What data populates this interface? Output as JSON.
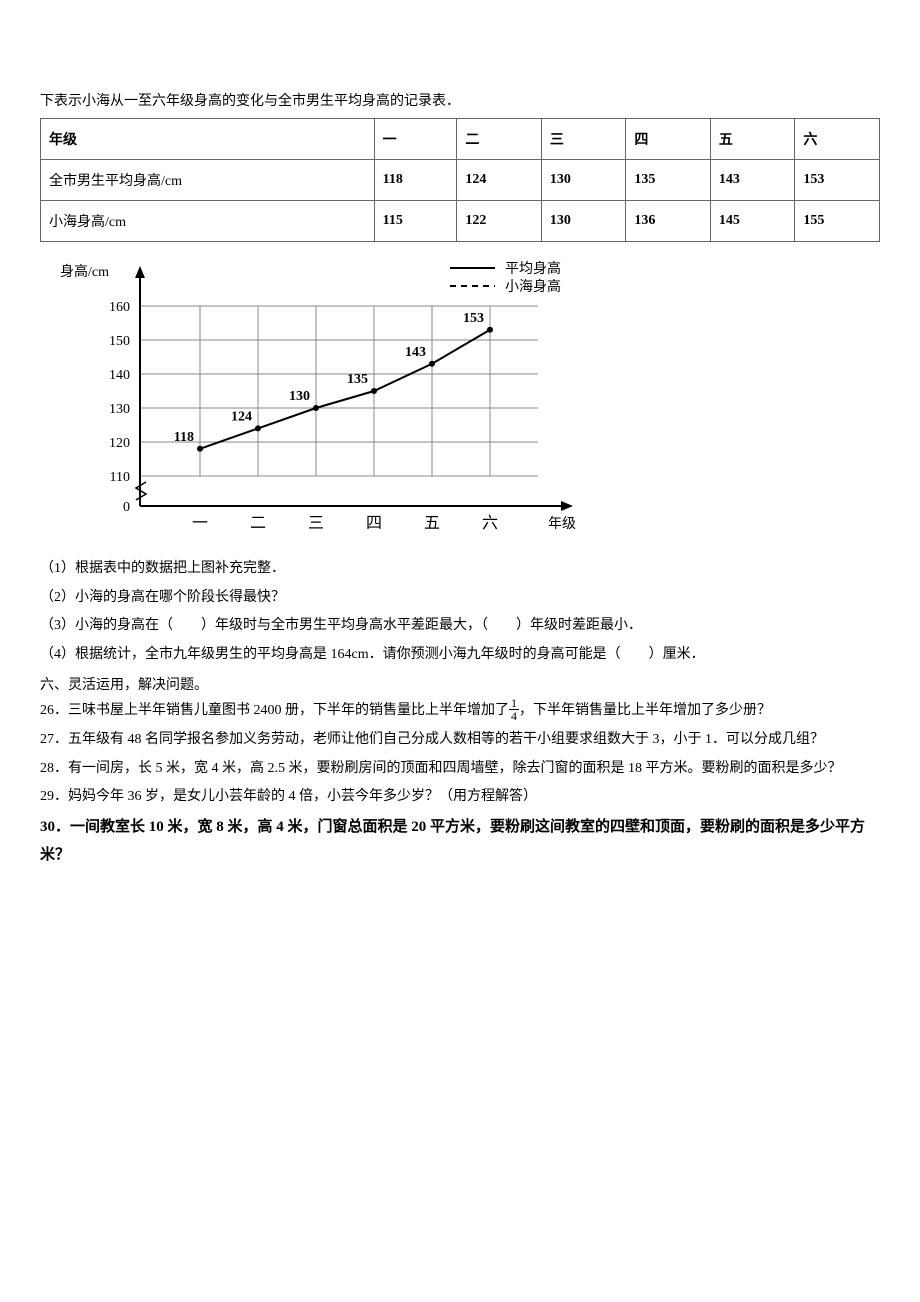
{
  "intro": "下表示小海从一至六年级身高的变化与全市男生平均身高的记录表．",
  "table": {
    "columns": [
      "年级",
      "一",
      "二",
      "三",
      "四",
      "五",
      "六"
    ],
    "rows": [
      [
        "全市男生平均身高/cm",
        "118",
        "124",
        "130",
        "135",
        "143",
        "153"
      ],
      [
        "小海身高/cm",
        "115",
        "122",
        "130",
        "136",
        "145",
        "155"
      ]
    ]
  },
  "chart": {
    "type": "line",
    "yaxis_label": "身高/cm",
    "xaxis_label": "年级",
    "legend": {
      "avg": "平均身高",
      "xiaohai": "小海身高"
    },
    "x_categories": [
      "一",
      "二",
      "三",
      "四",
      "五",
      "六"
    ],
    "y_ticks": [
      0,
      110,
      120,
      130,
      140,
      150,
      160
    ],
    "y_break": true,
    "series_avg": [
      118,
      124,
      130,
      135,
      143,
      153
    ],
    "series_avg_labels": [
      "118",
      "124",
      "130",
      "135",
      "143",
      "153"
    ],
    "colors": {
      "axis": "#000000",
      "grid": "#888888",
      "line_avg": "#000000",
      "marker_fill": "#000000",
      "legend_text": "#000000"
    },
    "line_width": 2,
    "marker_radius": 3,
    "font_size_label": 14,
    "font_size_tick": 14,
    "font_size_value": 14
  },
  "questions": {
    "q1": "（1）根据表中的数据把上图补充完整．",
    "q2": "（2）小海的身高在哪个阶段长得最快？",
    "q3": "（3）小海的身高在（　　）年级时与全市男生平均身高水平差距最大，（　　）年级时差距最小．",
    "q4": "（4）根据统计，全市九年级男生的平均身高是 164cm．请你预测小海九年级时的身高可能是（　　）厘米．"
  },
  "section6_title": "六、灵活运用，解决问题。",
  "problems": {
    "p26_pre": "26．三味书屋上半年销售儿童图书 2400 册，下半年的销售量比上半年增加了",
    "p26_frac_num": "1",
    "p26_frac_den": "4",
    "p26_post": "，下半年销售量比上半年增加了多少册？",
    "p27": "27．五年级有 48 名同学报名参加义务劳动，老师让他们自己分成人数相等的若干小组要求组数大于 3，小于 1．可以分成几组？",
    "p28": "28．有一间房，长 5 米，宽 4 米，高 2.5 米，要粉刷房间的顶面和四周墙壁，除去门窗的面积是 18 平方米。要粉刷的面积是多少？",
    "p29": "29．妈妈今年 36 岁，是女儿小芸年龄的 4 倍，小芸今年多少岁？（用方程解答）",
    "p30": "30．一间教室长 10 米，宽 8 米，高 4 米，门窗总面积是 20 平方米，要粉刷这间教室的四壁和顶面，要粉刷的面积是多少平方米？"
  }
}
